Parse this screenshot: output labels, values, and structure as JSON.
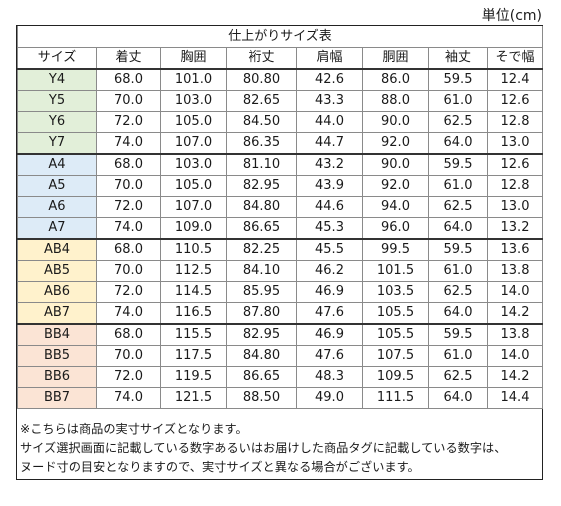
{
  "unit_label": "単位(cm)",
  "table": {
    "title": "仕上がりサイズ表",
    "headers": [
      "サイズ",
      "着丈",
      "胸囲",
      "裄丈",
      "肩幅",
      "胴囲",
      "袖丈",
      "そで幅"
    ],
    "groups": [
      {
        "id": "Y",
        "color": "#e2efd9",
        "rows": [
          [
            "Y4",
            "68.0",
            "101.0",
            "80.80",
            "42.6",
            "86.0",
            "59.5",
            "12.4"
          ],
          [
            "Y5",
            "70.0",
            "103.0",
            "82.65",
            "43.3",
            "88.0",
            "61.0",
            "12.6"
          ],
          [
            "Y6",
            "72.0",
            "105.0",
            "84.50",
            "44.0",
            "90.0",
            "62.5",
            "12.8"
          ],
          [
            "Y7",
            "74.0",
            "107.0",
            "86.35",
            "44.7",
            "92.0",
            "64.0",
            "13.0"
          ]
        ]
      },
      {
        "id": "A",
        "color": "#ddebf7",
        "rows": [
          [
            "A4",
            "68.0",
            "103.0",
            "81.10",
            "43.2",
            "90.0",
            "59.5",
            "12.6"
          ],
          [
            "A5",
            "70.0",
            "105.0",
            "82.95",
            "43.9",
            "92.0",
            "61.0",
            "12.8"
          ],
          [
            "A6",
            "72.0",
            "107.0",
            "84.80",
            "44.6",
            "94.0",
            "62.5",
            "13.0"
          ],
          [
            "A7",
            "74.0",
            "109.0",
            "86.65",
            "45.3",
            "96.0",
            "64.0",
            "13.2"
          ]
        ]
      },
      {
        "id": "AB",
        "color": "#fff2cc",
        "rows": [
          [
            "AB4",
            "68.0",
            "110.5",
            "82.25",
            "45.5",
            "99.5",
            "59.5",
            "13.6"
          ],
          [
            "AB5",
            "70.0",
            "112.5",
            "84.10",
            "46.2",
            "101.5",
            "61.0",
            "13.8"
          ],
          [
            "AB6",
            "72.0",
            "114.5",
            "85.95",
            "46.9",
            "103.5",
            "62.5",
            "14.0"
          ],
          [
            "AB7",
            "74.0",
            "116.5",
            "87.80",
            "47.6",
            "105.5",
            "64.0",
            "14.2"
          ]
        ]
      },
      {
        "id": "BB",
        "color": "#fbe4d5",
        "rows": [
          [
            "BB4",
            "68.0",
            "115.5",
            "82.95",
            "46.9",
            "105.5",
            "59.5",
            "13.8"
          ],
          [
            "BB5",
            "70.0",
            "117.5",
            "84.80",
            "47.6",
            "107.5",
            "61.0",
            "14.0"
          ],
          [
            "BB6",
            "72.0",
            "119.5",
            "86.65",
            "48.3",
            "109.5",
            "62.5",
            "14.2"
          ],
          [
            "BB7",
            "74.0",
            "121.5",
            "88.50",
            "49.0",
            "111.5",
            "64.0",
            "14.4"
          ]
        ]
      }
    ]
  },
  "notes": [
    "※こちらは商品の実寸サイズとなります。",
    "サイズ選択画面に記載している数字あるいはお届けした商品タグに記載している数字は、",
    "ヌード寸の目安となりますので、実寸サイズと異なる場合がございます。"
  ]
}
